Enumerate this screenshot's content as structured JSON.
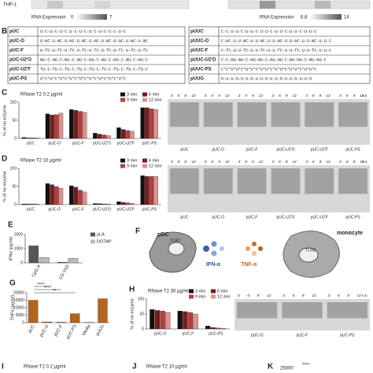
{
  "heatmap": {
    "label": "THP-1",
    "legend_title": "RNA Expression",
    "legend_min": 0,
    "legend_max": 7,
    "right_legend_title": "RNA Expression",
    "right_legend_min": 6.8,
    "right_legend_max": 14
  },
  "table_b": {
    "panel": "B",
    "left": [
      [
        "pUC",
        "U-C-U-C-U-C-U-C-U-C-U-C-U-C-U-C-U-C"
      ],
      [
        "pUC-O",
        "U-mC-U-mC-U-mC-U-mC-U-mC-U-mC-U-mC-U-mC-U-mC"
      ],
      [
        "pUC-F",
        "U-fC-U-fC-U-fC-U-fC-U-fC-U-fC-U-fC-U-fC-U-fC"
      ],
      [
        "pUC-U2'O",
        "mU-C-mU-C-mU-C-mU-C-mU-C-mU-C-mU-C-mU-C-mU-C"
      ],
      [
        "pUC-U2'F",
        "fU-C-fU-C-fU-C-fU-C-fU-C-fU-C-fU-C-fU-C-fU-C"
      ],
      [
        "pUC-PS",
        "U*C*U*C*U*C*U*C*U*C*U*C*U*C*U*C*U*C"
      ]
    ],
    "right": [
      [
        "pUUC",
        "C-C-U-U-C-U-U-C-U-U-C-U-U-C-U-U-C-U-U-C"
      ],
      [
        "pUUC-O",
        "C-mC-U-U-mC-U-U-mC-U-U-mC-U-U-mC-U-U-mC-U-U-C"
      ],
      [
        "pUUC-F",
        "C-fC-U-U-fC-U-U-fC-U-U-fC-U-U-fC-U-U-fC-U-U-C"
      ],
      [
        "pUUC-U2'O",
        "C-C-mU-mU-C-mU-mU-C-mU-mU-C-mU-mU-C-mU-mU-C"
      ],
      [
        "pUUC-PS",
        "C*C*U*U*C*U*U*C*U*U*C*U*U*C*U*U*C*U*U*C"
      ],
      [
        "pUUG",
        "G-U-U-G-U-U-G-U-U-G-U-U-G-U-U-G-U-U-G"
      ]
    ]
  },
  "chart_data": [
    {
      "type": "bar",
      "panel": "C",
      "title": "RNase T2 0.2 µg/ml",
      "ylabel": "% of no enzyme",
      "categories": [
        "pUC",
        "pUC-O",
        "pUC-F",
        "pUC-U2'O",
        "pUC-U2'F",
        "pUC-PS"
      ],
      "series": [
        {
          "name": "3 min",
          "color": "#111111",
          "values": [
            3,
            68,
            80,
            15,
            30,
            85
          ]
        },
        {
          "name": "6 min",
          "color": "#7b1a1a",
          "values": [
            2,
            65,
            78,
            12,
            25,
            85
          ]
        },
        {
          "name": "9 min",
          "color": "#b04040",
          "values": [
            2,
            66,
            75,
            10,
            22,
            82
          ]
        },
        {
          "name": "12 min",
          "color": "#e09090",
          "values": [
            2,
            70,
            72,
            8,
            20,
            80
          ]
        }
      ],
      "ylim": [
        0,
        100
      ],
      "yticks": [
        0,
        50,
        100
      ],
      "gel_header": [
        "3'",
        "6'",
        "9'",
        "12'"
      ],
      "gel_ne": "n.e.",
      "gel_lanes": [
        "pUC",
        "pUC-O",
        "pUC-F",
        "pUC-U2'O",
        "pUC-U2'F",
        "pUC-PS"
      ]
    },
    {
      "type": "bar",
      "panel": "D",
      "title": "RNase T2 10 µg/ml",
      "ylabel": "% of no enzyme",
      "categories": [
        "pUC",
        "pUC-O",
        "pUC-F",
        "pUC-U2'O",
        "pUC-U2'F",
        "pUC-PS"
      ],
      "series": [
        {
          "name": "3 min",
          "color": "#111111",
          "values": [
            2,
            58,
            52,
            3,
            8,
            80
          ]
        },
        {
          "name": "6 min",
          "color": "#7b1a1a",
          "values": [
            2,
            55,
            48,
            3,
            6,
            78
          ]
        },
        {
          "name": "9 min",
          "color": "#b04040",
          "values": [
            2,
            50,
            40,
            2,
            5,
            78
          ]
        },
        {
          "name": "12 min",
          "color": "#e09090",
          "values": [
            2,
            45,
            35,
            2,
            4,
            78
          ]
        }
      ],
      "ylim": [
        0,
        100
      ],
      "yticks": [
        0,
        50,
        100
      ],
      "gel_header": [
        "3'",
        "6'",
        "9'",
        "12'"
      ],
      "gel_ne": "n.e.",
      "gel_lanes": [
        "pUC",
        "pUC-O",
        "pUC-F",
        "pUC-U2'O",
        "pUC-U2'F",
        "pUC-PS"
      ]
    },
    {
      "type": "bar",
      "panel": "E",
      "ylabel": "IFNα (pg/ml)",
      "categories": [
        "CpG-A",
        "G3-YSD"
      ],
      "series": [
        {
          "name": "pLA",
          "color": "#555555",
          "values": [
            1200,
            50
          ]
        },
        {
          "name": "DOTAP",
          "color": "#bbbbbb",
          "values": [
            380,
            320
          ]
        }
      ],
      "ylim": [
        0,
        2000
      ],
      "yticks": [
        0,
        1000,
        2000
      ]
    },
    {
      "type": "bar",
      "panel": "G",
      "ylabel": "TNFα (pg/ml)",
      "categories": [
        "pUC",
        "pUC-O",
        "pUC-F",
        "pUC-PS",
        "Media",
        "pUUG"
      ],
      "series": [
        {
          "name": "TNFα",
          "color": "#b5651d",
          "values": [
            15000,
            500,
            300,
            6000,
            100,
            16000
          ]
        }
      ],
      "ylim": [
        0,
        20000
      ],
      "yticks": [
        0,
        5000,
        10000,
        15000,
        20000
      ],
      "annotations": [
        "****",
        "****",
        "**"
      ]
    },
    {
      "type": "bar",
      "panel": "H",
      "title": "RNase T2 30 µg/ml",
      "ylabel": "% of no enzyme",
      "categories": [
        "pUC-O",
        "pUC-F",
        "pUC-PS"
      ],
      "series": [
        {
          "name": "3 min",
          "color": "#111111",
          "values": [
            65,
            60,
            10
          ]
        },
        {
          "name": "6 min",
          "color": "#7b1a1a",
          "values": [
            62,
            58,
            5
          ]
        },
        {
          "name": "9 min",
          "color": "#b04040",
          "values": [
            60,
            55,
            3
          ]
        },
        {
          "name": "12 min",
          "color": "#e09090",
          "values": [
            55,
            50,
            2
          ]
        }
      ],
      "ylim": [
        0,
        100
      ],
      "yticks": [
        0,
        50,
        100
      ],
      "gel_header": [
        "3'",
        "6'",
        "9'",
        "12'"
      ],
      "gel_ne": "n.e.",
      "gel_lanes": [
        "pUC-O",
        "pUC-F",
        "pUC-PS"
      ]
    }
  ],
  "diagram_f": {
    "panel": "F",
    "left_cell": "pDC",
    "right_cell": "monocyte",
    "left_receptor": "TLR7",
    "right_receptor": "TLR8",
    "left_output": "IFN-α",
    "right_output": "TNF-α"
  },
  "bottom": {
    "panel_i": "I",
    "title_i": "RNase T2 0.2 µg/ml",
    "panel_j": "J",
    "title_j": "RNase T2 10 µg/ml",
    "panel_k": "K",
    "tick_k": "25000",
    "sig_k": "****"
  }
}
